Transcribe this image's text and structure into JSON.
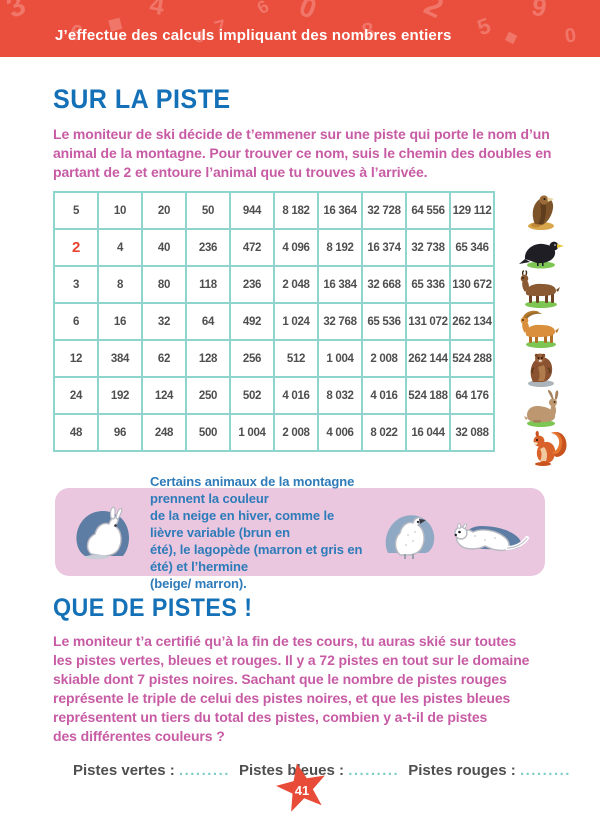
{
  "header": {
    "title": "J’effectue des calculs impliquant des nombres entiers",
    "decor_glyphs": [
      "3",
      "6",
      "4",
      "7",
      "0",
      "8",
      "2",
      "5",
      "9",
      "0",
      "◆",
      "6",
      "8",
      "◆"
    ]
  },
  "section1": {
    "title": "SUR LA PISTE",
    "intro_lines": [
      "Le moniteur de ski décide de t’emmener sur une piste qui porte le nom d’un",
      "animal de la montagne. Pour trouver ce nom, suis le chemin des doubles en",
      "partant de 2 et entoure l’animal que tu trouves à l’arrivée."
    ]
  },
  "table": {
    "rows": [
      [
        "5",
        "10",
        "20",
        "50",
        "944",
        "8 182",
        "16 364",
        "32 728",
        "64 556",
        "129 112"
      ],
      [
        "2",
        "4",
        "40",
        "236",
        "472",
        "4 096",
        "8 192",
        "16 374",
        "32 738",
        "65 346"
      ],
      [
        "3",
        "8",
        "80",
        "118",
        "236",
        "2 048",
        "16 384",
        "32 668",
        "65 336",
        "130 672"
      ],
      [
        "6",
        "16",
        "32",
        "64",
        "492",
        "1 024",
        "32 768",
        "65 536",
        "131 072",
        "262 134"
      ],
      [
        "12",
        "384",
        "62",
        "128",
        "256",
        "512",
        "1 004",
        "2 008",
        "262 144",
        "524 288"
      ],
      [
        "24",
        "192",
        "124",
        "250",
        "502",
        "4 016",
        "8 032",
        "4 016",
        "524 188",
        "64 176"
      ],
      [
        "48",
        "96",
        "248",
        "500",
        "1 004",
        "2 008",
        "4 006",
        "8 022",
        "16 044",
        "32 088"
      ]
    ],
    "start": {
      "row": 1,
      "col": 0
    },
    "animals": [
      "eagle",
      "alpine-crow",
      "chamois",
      "ibex",
      "marmot",
      "hare",
      "squirrel"
    ]
  },
  "info_box": {
    "text_lines": [
      "Certains animaux de la montagne prennent la couleur",
      "de la neige en hiver, comme le lièvre variable (brun en",
      "été), le lagopède (marron et gris en été) et l’hermine",
      "(beige/ marron)."
    ],
    "illustrations": [
      "white-hare",
      "ptarmigan",
      "ermine"
    ]
  },
  "section2": {
    "title": "QUE DE PISTES !",
    "problem_lines": [
      "Le moniteur t’a certifié qu’à la fin de tes cours, tu auras skié sur toutes",
      "les pistes vertes, bleues et rouges. Il y a 72 pistes en tout sur le domaine",
      "skiable dont 7 pistes noires. Sachant que le nombre de pistes rouges",
      "représente le triple de celui des pistes noires, et que les pistes bleues",
      "représentent un tiers du total des pistes, combien y a-t-il de pistes",
      "des différentes couleurs ?"
    ]
  },
  "answers": {
    "items": [
      {
        "label": "Pistes vertes :",
        "dots": "........."
      },
      {
        "label": "Pistes bleues :",
        "dots": "........."
      },
      {
        "label": "Pistes rouges :",
        "dots": "........."
      }
    ]
  },
  "page_number": "41",
  "colors": {
    "header_red": "#e94f3c",
    "accent_blue": "#1471b7",
    "text_pink": "#c75ba4",
    "table_border": "#8ed5ce",
    "cell_text": "#4f4f4f",
    "start_red": "#e8432e",
    "box_bg": "#eac7df",
    "box_text": "#2e7bb9",
    "star_red": "#e84b38",
    "dots_teal": "#7fcdc7"
  }
}
